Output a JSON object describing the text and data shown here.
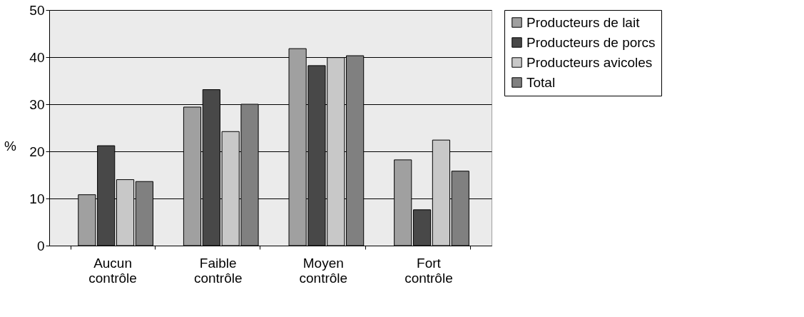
{
  "chart_data": {
    "type": "bar",
    "ylabel": "%",
    "categories": [
      "Aucun contrôle",
      "Faible contrôle",
      "Moyen contrôle",
      "Fort contrôle"
    ],
    "series": [
      {
        "name": "Producteurs de lait",
        "color": "#a0a0a0",
        "values": [
          10.8,
          29.4,
          41.8,
          18.2
        ]
      },
      {
        "name": "Producteurs de porcs",
        "color": "#484848",
        "values": [
          21.2,
          33.1,
          38.2,
          7.6
        ]
      },
      {
        "name": "Producteurs avicoles",
        "color": "#c8c8c8",
        "values": [
          14.0,
          24.2,
          39.9,
          22.4
        ]
      },
      {
        "name": "Total",
        "color": "#808080",
        "values": [
          13.6,
          30.0,
          40.3,
          15.8
        ]
      }
    ],
    "ylim": [
      0,
      50
    ],
    "yticks": [
      0,
      10,
      20,
      30,
      40,
      50
    ],
    "grid": "y",
    "legend": "right"
  }
}
